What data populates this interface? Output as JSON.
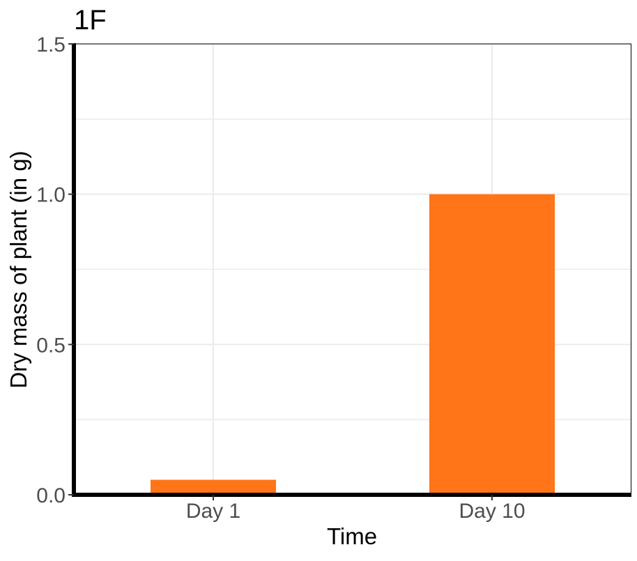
{
  "chart_data": {
    "type": "bar",
    "title": "1F",
    "xlabel": "Time",
    "ylabel": "Dry mass of plant (in g)",
    "categories": [
      "Day 1",
      "Day 10"
    ],
    "values": [
      0.05,
      1.0
    ],
    "ylim": [
      0,
      1.5
    ],
    "yticks": [
      "0.0",
      "0.5",
      "1.0",
      "1.5"
    ],
    "bar_color": "#FF7518",
    "grid": true,
    "legend": "none"
  }
}
